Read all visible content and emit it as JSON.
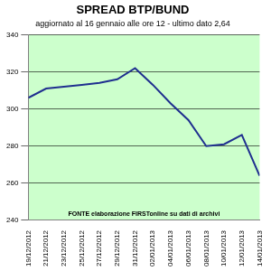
{
  "chart_data": {
    "type": "line",
    "title": "SPREAD BTP/BUND",
    "subtitle": "aggiornato al 16 gennaio alle ore 12 - ultimo dato 2,64",
    "annotations": [
      "FONTE elaborazione FIRSTonline su dati di archivi"
    ],
    "categories": [
      "19/12/2012",
      "21/12/2012",
      "23/12/2012",
      "25/12/2012",
      "27/12/2012",
      "29/12/2012",
      "31/12/2012",
      "02/01/2013",
      "04/01/2013",
      "06/01/2013",
      "08/01/2013",
      "10/01/2013",
      "12/01/2013",
      "14/01/2013"
    ],
    "values": [
      306,
      311,
      312,
      313,
      314,
      316,
      322,
      313,
      303,
      294,
      280,
      281,
      286,
      264
    ],
    "color": "#1f2f8f",
    "ylim": [
      240,
      340
    ],
    "yticks": [
      240,
      260,
      280,
      300,
      320,
      340
    ],
    "grid": true
  }
}
